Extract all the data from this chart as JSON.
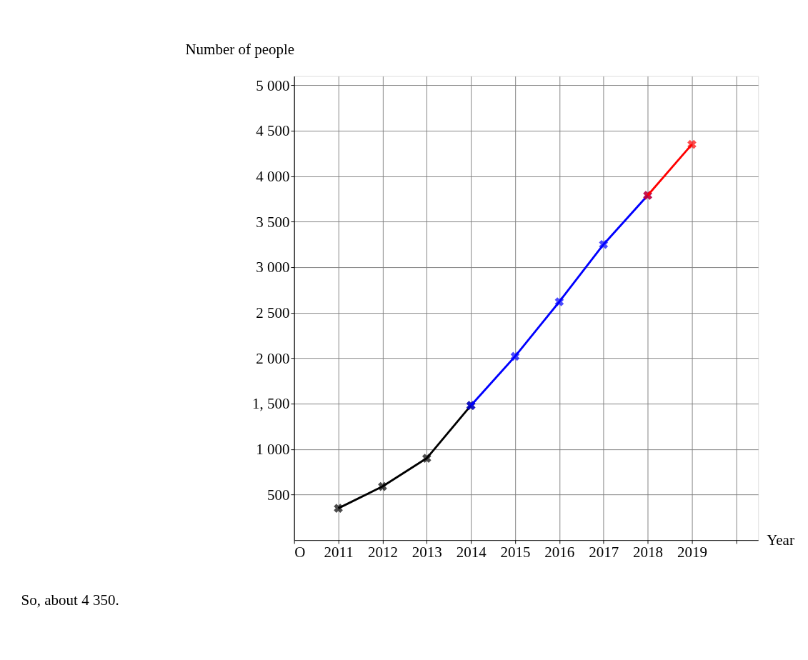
{
  "chart_data": {
    "type": "line",
    "xlabel": "Year",
    "ylabel": "Number of people",
    "series": [
      {
        "color": "#000000",
        "x": [
          2011,
          2012,
          2013,
          2014
        ],
        "values": [
          350,
          590,
          900,
          1480
        ]
      },
      {
        "color": "#0000ff",
        "x": [
          2014,
          2015,
          2016,
          2017,
          2018
        ],
        "values": [
          1480,
          2020,
          2620,
          3250,
          3790
        ]
      },
      {
        "color": "#ff0000",
        "x": [
          2018,
          2019
        ],
        "values": [
          3790,
          4350
        ]
      }
    ],
    "xlim": [
      2010,
      2020.5
    ],
    "xticks": [
      {
        "value": 2010,
        "label": "O"
      },
      2011,
      2012,
      2013,
      2014,
      2015,
      2016,
      2017,
      2018,
      2019,
      {
        "value": 2020,
        "label": null
      }
    ],
    "ylim": [
      0,
      5100
    ],
    "yticks": [
      {
        "value": 500,
        "label": "500"
      },
      {
        "value": 1000,
        "label": "1 000"
      },
      {
        "value": 1500,
        "label": "1, 500"
      },
      {
        "value": 2000,
        "label": "2 000"
      },
      {
        "value": 2500,
        "label": "2 500"
      },
      {
        "value": 3000,
        "label": "3 000"
      },
      {
        "value": 3500,
        "label": "3 500"
      },
      {
        "value": 4000,
        "label": "4 000"
      },
      {
        "value": 4500,
        "label": "4 500"
      },
      {
        "value": 5000,
        "label": "5 000"
      }
    ],
    "grid": true,
    "marker": "cross",
    "line_style": "solid",
    "annotations": [
      "So, about 4 350."
    ]
  }
}
